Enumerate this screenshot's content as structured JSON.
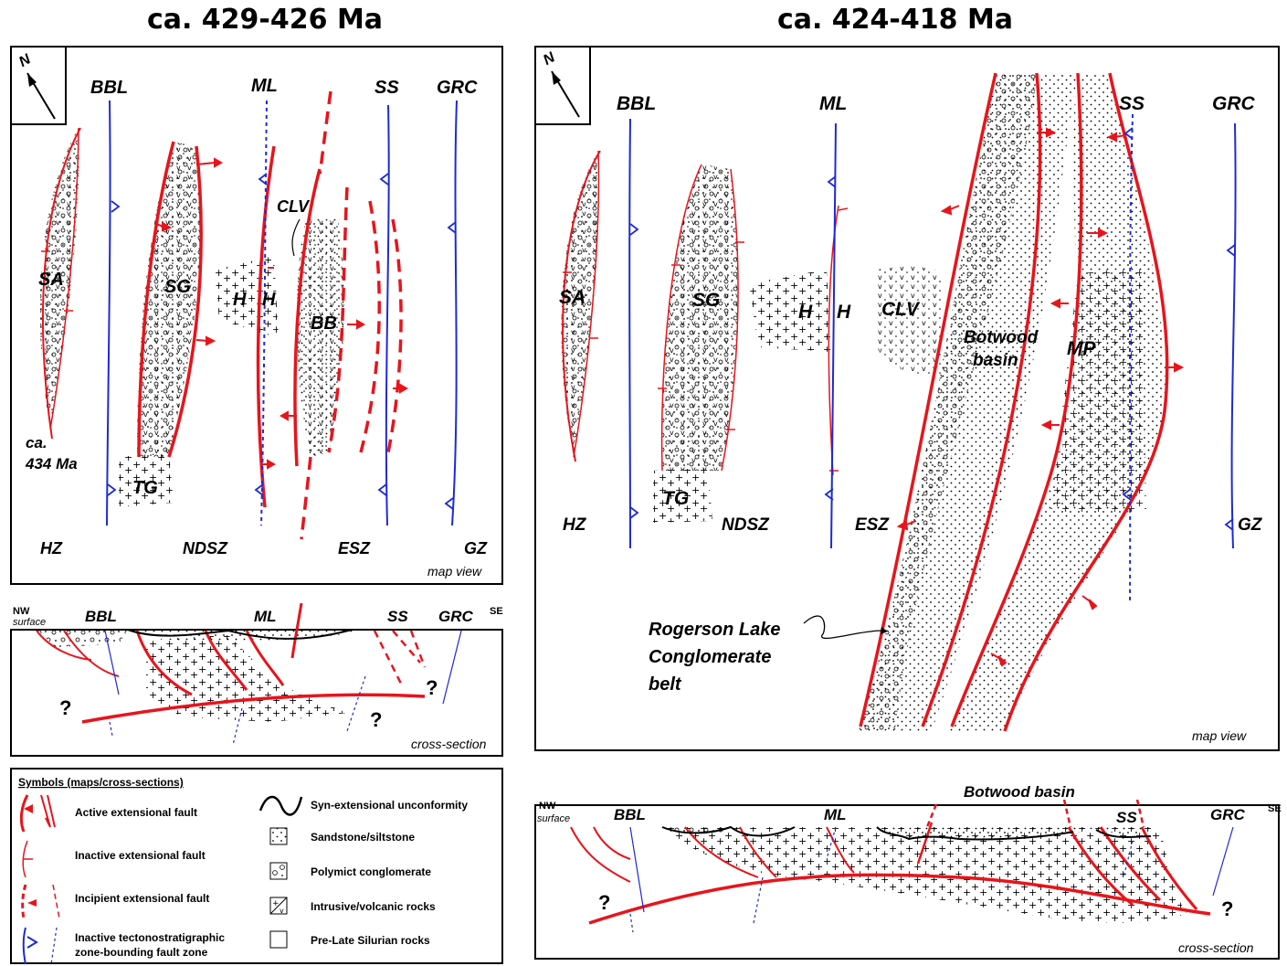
{
  "titles": {
    "left": "ca. 429-426 Ma",
    "right": "ca. 424-418 Ma"
  },
  "left_map": {
    "north": "N",
    "faults": [
      "BBL",
      "ML",
      "SS",
      "GRC"
    ],
    "units": [
      "SA",
      "SG",
      "H",
      "H",
      "CLV",
      "BB",
      "TG"
    ],
    "age_note": [
      "ca.",
      "434 Ma"
    ],
    "zones": [
      "HZ",
      "NDSZ",
      "ESZ",
      "GZ"
    ],
    "view": "map view"
  },
  "left_section": {
    "nw": "NW",
    "se": "SE",
    "surface": "surface",
    "faults": [
      "BBL",
      "ML",
      "SS",
      "GRC"
    ],
    "unknown": "?",
    "view": "cross-section"
  },
  "legend": {
    "title": "Symbols (maps/cross-sections)",
    "items": [
      "Active extensional fault",
      "Inactive extensional fault",
      "Incipient extensional fault",
      "Inactive tectonostratigraphic",
      "zone-bounding fault zone",
      "Syn-extensional unconformity",
      "Sandstone/siltstone",
      "Polymict conglomerate",
      "Intrusive/volcanic rocks",
      "Pre-Late Silurian rocks"
    ]
  },
  "right_map": {
    "north": "N",
    "faults": [
      "BBL",
      "ML",
      "SS",
      "GRC"
    ],
    "units": [
      "SA",
      "SG",
      "H",
      "H",
      "CLV",
      "TG",
      "MP"
    ],
    "basin": [
      "Botwood",
      "basin"
    ],
    "zones": [
      "HZ",
      "NDSZ",
      "ESZ",
      "GZ"
    ],
    "belt": [
      "Rogerson Lake",
      "Conglomerate",
      "belt"
    ],
    "view": "map view"
  },
  "right_section": {
    "nw": "NW",
    "se": "SE",
    "surface": "surface",
    "faults": [
      "BBL",
      "ML",
      "SS",
      "GRC"
    ],
    "basin": "Botwood basin",
    "unknown": "?",
    "view": "cross-section"
  },
  "colors": {
    "active_fault": "#e8141b",
    "zone_fault": "#1d2ad6",
    "ink": "#000000"
  }
}
